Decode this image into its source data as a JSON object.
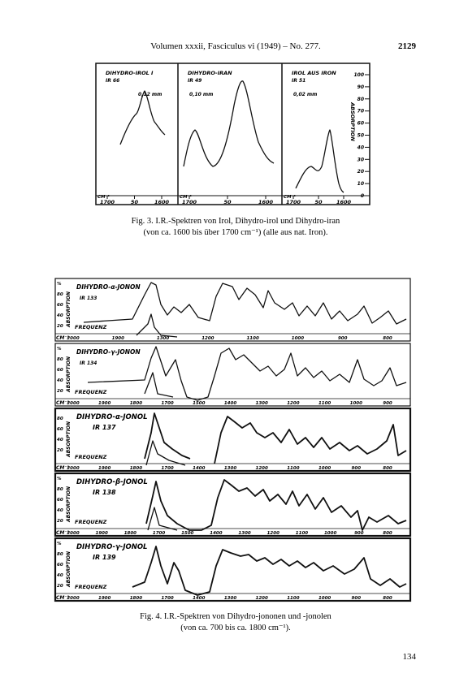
{
  "header": {
    "running_title": "Volumen xxxii, Fasciculus vi (1949) – No. 277.",
    "page_number": "2129"
  },
  "figure3": {
    "panels": [
      {
        "title": "DIHYDRO-IROL I",
        "code": "IR 66",
        "thickness": "0,12 mm",
        "unit": "CM⁻¹",
        "xticks": [
          "1700",
          "50",
          "1600"
        ]
      },
      {
        "title": "DIHYDRO-IRAN",
        "code": "IR 49",
        "thickness": "0,10 mm",
        "unit": "CM⁻¹",
        "xticks": [
          "1700",
          "50",
          "1600"
        ]
      },
      {
        "title": "IROL AUS IRON",
        "code": "IR 51",
        "thickness": "0,02 mm",
        "unit": "CM⁻¹",
        "xticks": [
          "1700",
          "50",
          "1600"
        ]
      }
    ],
    "axis_label": "ABSORPTION",
    "yticks": [
      "100",
      "90",
      "80",
      "70",
      "60",
      "50",
      "40",
      "30",
      "20",
      "10",
      "0"
    ],
    "caption": [
      "Fig. 3.   I.R.-Spektren von Irol, Dihydro-irol und Dihydro-iran",
      "(von ca. 1600 bis über 1700 cm⁻¹) (alle aus nat. Iron)."
    ]
  },
  "figure4": {
    "strips": [
      {
        "title": "DIHYDRO-α-JONON",
        "code": "IR 133",
        "frequency_label": "FREQUENZ",
        "axis_label": "ABSORPTION",
        "unit": "CM⁻¹",
        "yticks": [
          "%",
          "80",
          "60",
          "40",
          "20"
        ],
        "xticks": [
          "2000",
          "1900",
          "1300",
          "1200",
          "1100",
          "1000",
          "900",
          "800"
        ]
      },
      {
        "title": "DIHYDRO-γ-JONON",
        "code": "IR 134",
        "frequency_label": "FREQUENZ",
        "axis_label": "ABSORPTION",
        "unit": "CM⁻¹",
        "yticks": [
          "%",
          "80",
          "60",
          "40",
          "20"
        ],
        "xticks": [
          "2000",
          "1900",
          "1800",
          "1700",
          "1500",
          "1400",
          "1300",
          "1200",
          "1100",
          "1000",
          "900"
        ]
      },
      {
        "title": "DIHYDRO-α-JONOL",
        "code": "IR 137",
        "frequency_label": "FREQUENZ",
        "axis_label": "ABSORPTION",
        "unit": "CM⁻¹",
        "yticks": [
          "80",
          "60",
          "40",
          "20"
        ],
        "xticks": [
          "2000",
          "1900",
          "1800",
          "1700",
          "1400",
          "1300",
          "1200",
          "1100",
          "1000",
          "900",
          "800"
        ]
      },
      {
        "title": "DIHYDRO-β-JONOL",
        "code": "IR 138",
        "frequency_label": "FREQUENZ",
        "axis_label": "ABSORPTION",
        "unit": "CM⁻¹",
        "yticks": [
          "%",
          "80",
          "60",
          "40",
          "20"
        ],
        "xticks": [
          "2000",
          "1900",
          "1800",
          "1700",
          "1500",
          "1400",
          "1300",
          "1200",
          "1100",
          "1000",
          "900",
          "800"
        ]
      },
      {
        "title": "DIHYDRO-γ-JONOL",
        "code": "IR 139",
        "frequency_label": "FREQUENZ",
        "axis_label": "ABSORPTION",
        "unit": "CM⁻¹",
        "yticks": [
          "%",
          "80",
          "60",
          "40",
          "20"
        ],
        "xticks": [
          "2000",
          "1900",
          "1800",
          "1700",
          "1400",
          "1300",
          "1200",
          "1100",
          "1000",
          "900",
          "800"
        ]
      }
    ],
    "caption": [
      "Fig. 4.   I.R.-Spektren von Dihydro-jononen und -jonolen",
      "(von ca. 700 bis ca. 1800 cm⁻¹)."
    ]
  },
  "footer": {
    "page_number": "134"
  }
}
